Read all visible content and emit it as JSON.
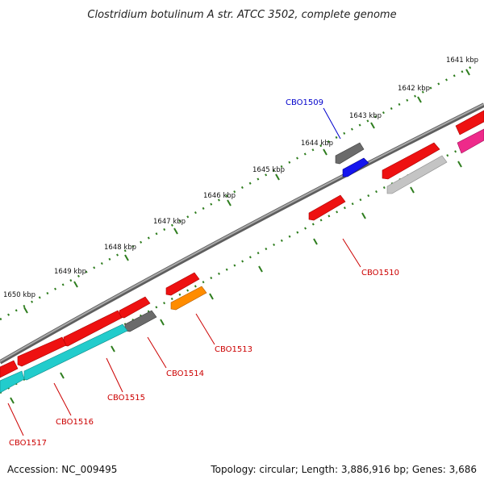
{
  "title": "Clostridium botulinum A str. ATCC 3502, complete genome",
  "footer": {
    "accession": "Accession: NC_009495",
    "summary": "Topology: circular; Length: 3,886,916 bp; Genes: 3,686"
  },
  "ruler_labels": [
    "1641 kbp",
    "1642 kbp",
    "1643 kbp",
    "1644 kbp",
    "1645 kbp",
    "1646 kbp",
    "1647 kbp",
    "1648 kbp",
    "1649 kbp",
    "1650 kbp"
  ],
  "gene_labels": {
    "cbo1509": "CBO1509",
    "cbo1510": "CBO1510",
    "cbo1513": "CBO1513",
    "cbo1514": "CBO1514",
    "cbo1515": "CBO1515",
    "cbo1516": "CBO1516",
    "cbo1517": "CBO1517"
  },
  "colors": {
    "backbone": "#888888",
    "ticks": "#2e7d1e",
    "cds_red": "#ee1111",
    "cds_gray": "#6b6b6b",
    "cds_lightgray": "#c4c4c4",
    "cds_blue": "#1515ee",
    "cds_cyan": "#22cccc",
    "cds_orange": "#ff8c00",
    "cds_pink": "#ee2a8a",
    "label_blue": "#0000cc",
    "label_red": "#cc0000"
  }
}
